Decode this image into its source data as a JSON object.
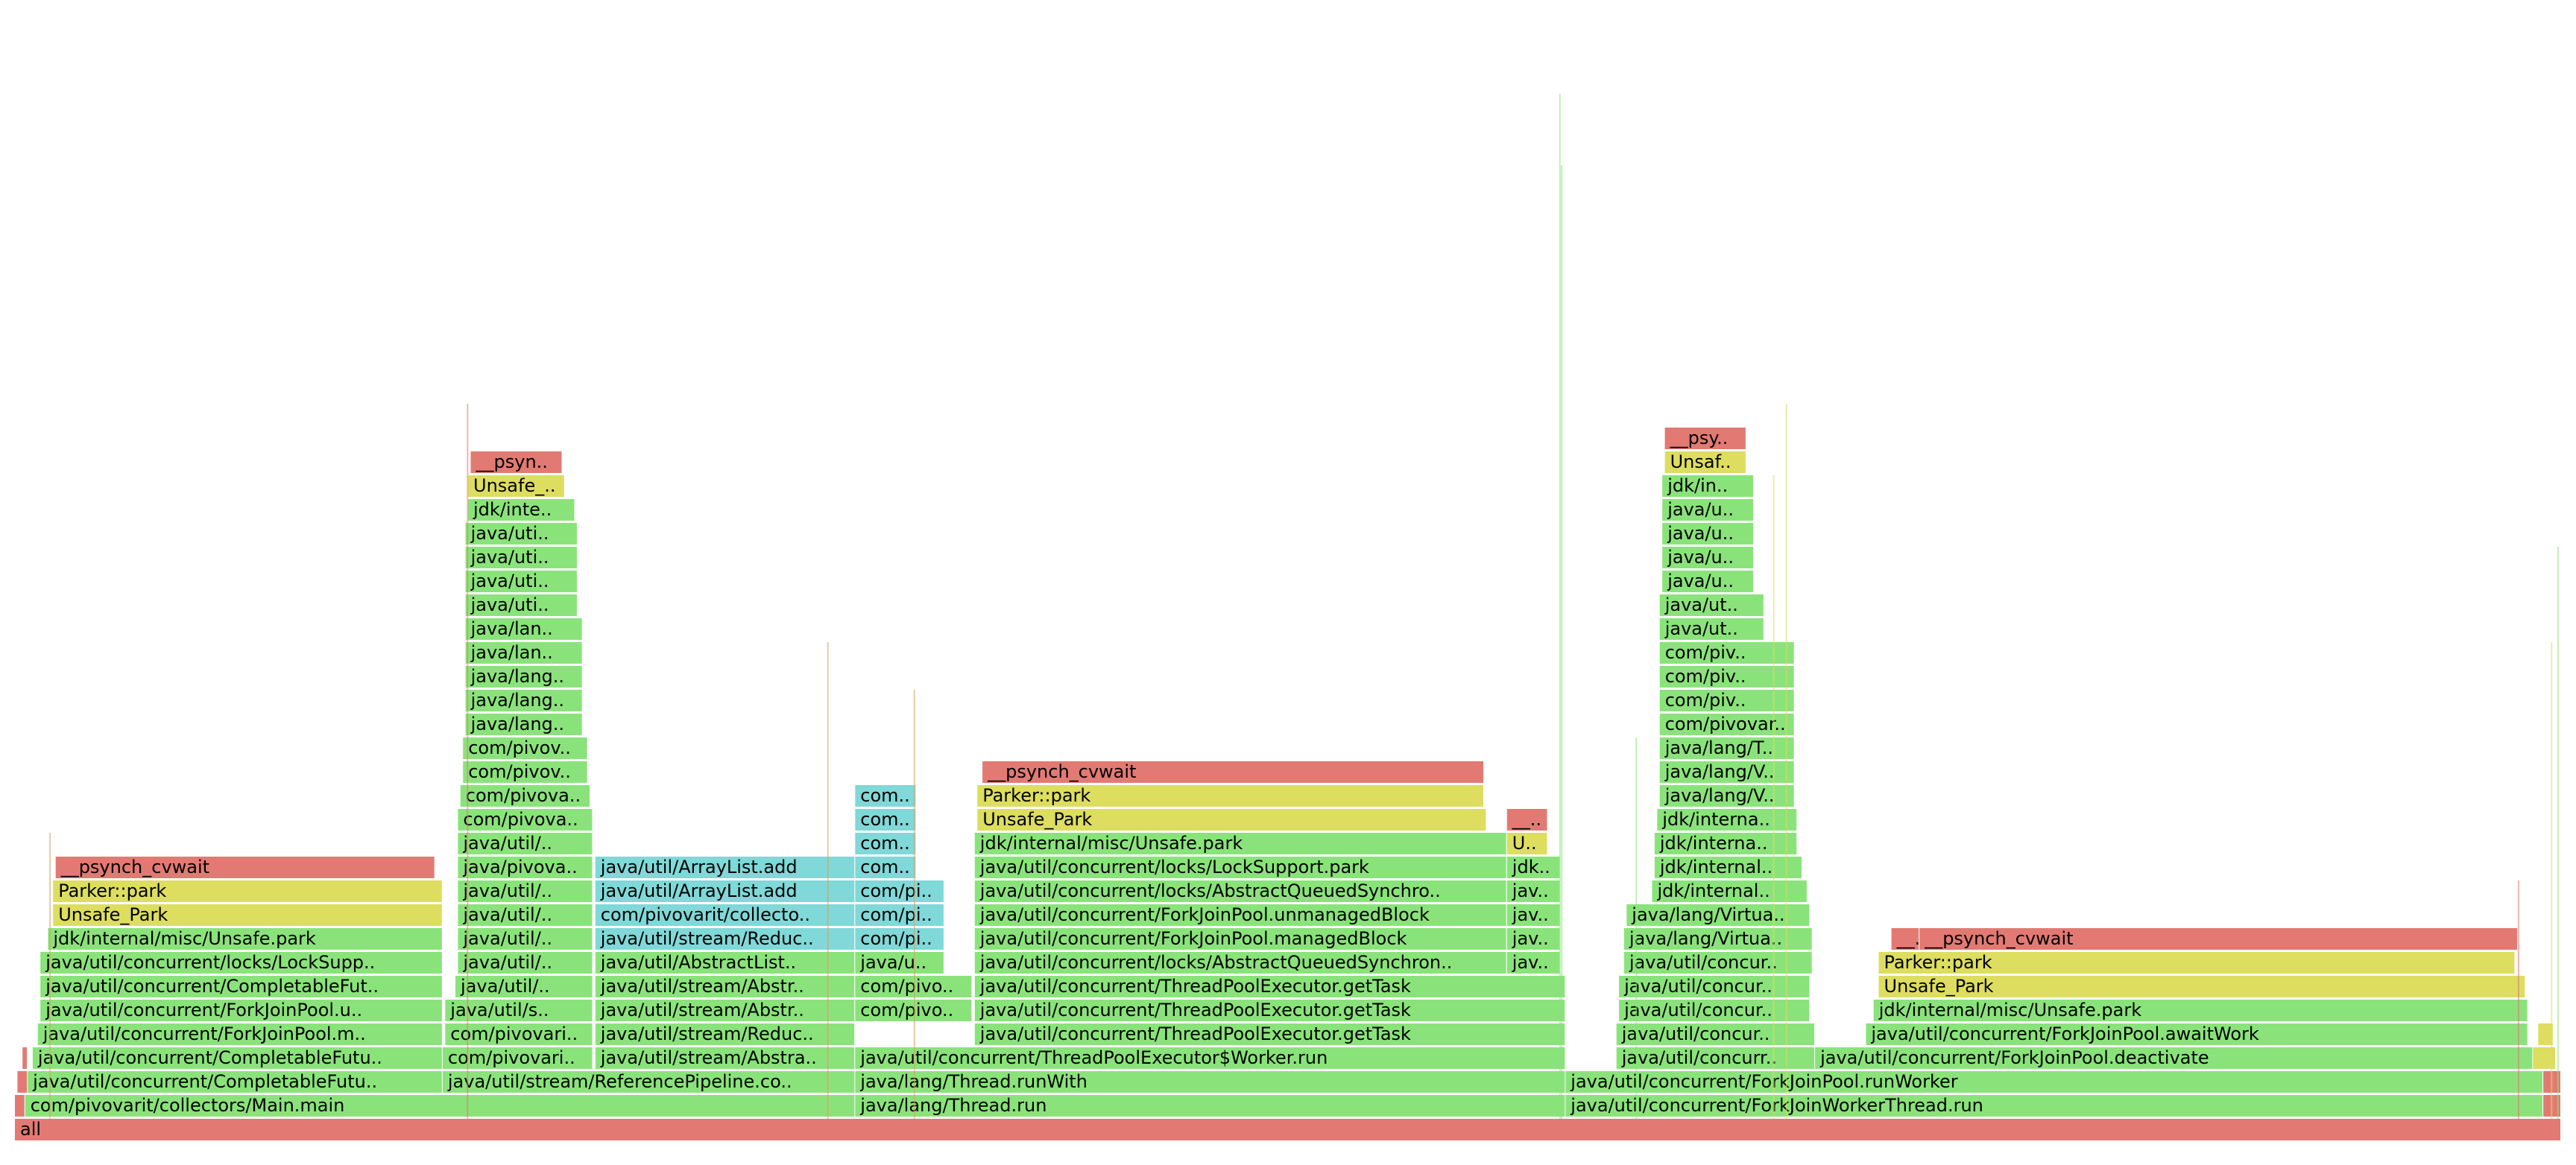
{
  "chart_data": {
    "type": "flamegraph",
    "title": "",
    "xlabel": "",
    "ylabel": "",
    "x_unit": "percent_of_samples",
    "x_range": [
      0,
      100
    ],
    "colors": {
      "java": "#8ae37a",
      "java_alt": "#7ed46e",
      "jdk": "#74d264",
      "native": "#e27a73",
      "cpp": "#dddd60",
      "cpp_dark": "#c6c655",
      "inlined": "#80d8d8",
      "inlined_dark": "#74c8cf",
      "tiny": "#d3a060"
    },
    "frames": [
      {
        "label": "all",
        "kind": "native",
        "depth": 0,
        "start": 0.0,
        "width": 100.0
      },
      {
        "label": "",
        "kind": "native",
        "depth": 1,
        "start": 0.0,
        "width": 0.4
      },
      {
        "label": "com/pivovarit/collectors/Main.main",
        "kind": "java",
        "depth": 1,
        "start": 0.4,
        "width": 32.6
      },
      {
        "label": "java/lang/Thread.run",
        "kind": "java",
        "depth": 1,
        "start": 33.0,
        "width": 27.9
      },
      {
        "label": "java/util/concurrent/ForkJoinWorkerThread.run",
        "kind": "java",
        "depth": 1,
        "start": 60.9,
        "width": 38.4
      },
      {
        "label": "",
        "kind": "native",
        "depth": 1,
        "start": 99.3,
        "width": 0.7
      },
      {
        "label": "",
        "kind": "native",
        "depth": 2,
        "start": 0.1,
        "width": 0.4
      },
      {
        "label": "java/util/concurrent/CompletableFutu..",
        "kind": "java",
        "depth": 2,
        "start": 0.5,
        "width": 16.3
      },
      {
        "label": "java/util/stream/ReferencePipeline.co..",
        "kind": "java",
        "depth": 2,
        "start": 16.8,
        "width": 16.2
      },
      {
        "label": "java/lang/Thread.runWith",
        "kind": "java",
        "depth": 2,
        "start": 33.0,
        "width": 27.9
      },
      {
        "label": "java/util/concurrent/ForkJoinPool.runWorker",
        "kind": "java",
        "depth": 2,
        "start": 60.9,
        "width": 38.4
      },
      {
        "label": "",
        "kind": "native",
        "depth": 2,
        "start": 99.3,
        "width": 0.7
      },
      {
        "label": "",
        "kind": "native",
        "depth": 3,
        "start": 0.3,
        "width": 0.2
      },
      {
        "label": "java/util/concurrent/CompletableFutu..",
        "kind": "java",
        "depth": 3,
        "start": 0.7,
        "width": 16.1
      },
      {
        "label": "com/pivovari..",
        "kind": "java",
        "depth": 3,
        "start": 16.8,
        "width": 5.9
      },
      {
        "label": "java/util/stream/Abstra..",
        "kind": "java",
        "depth": 3,
        "start": 22.8,
        "width": 10.2
      },
      {
        "label": "java/util/concurrent/ThreadPoolExecutor$Worker.run",
        "kind": "java",
        "depth": 3,
        "start": 33.0,
        "width": 27.9
      },
      {
        "label": "java/util/concurr..",
        "kind": "java",
        "depth": 3,
        "start": 62.9,
        "width": 7.8
      },
      {
        "label": "java/util/concurrent/ForkJoinPool.deactivate",
        "kind": "java",
        "depth": 3,
        "start": 70.7,
        "width": 28.2
      },
      {
        "label": "",
        "kind": "cpp",
        "depth": 3,
        "start": 98.9,
        "width": 0.9
      },
      {
        "label": "java/util/concurrent/ForkJoinPool.m..",
        "kind": "java",
        "depth": 4,
        "start": 0.9,
        "width": 15.9
      },
      {
        "label": "com/pivovari..",
        "kind": "java",
        "depth": 4,
        "start": 16.9,
        "width": 5.8
      },
      {
        "label": "java/util/stream/Reduc..",
        "kind": "java",
        "depth": 4,
        "start": 22.8,
        "width": 10.2
      },
      {
        "label": "java/util/concurrent/ThreadPoolExecutor.getTask",
        "kind": "java",
        "depth": 4,
        "start": 37.7,
        "width": 23.2
      },
      {
        "label": "java/util/concur..",
        "kind": "java",
        "depth": 4,
        "start": 62.9,
        "width": 7.8
      },
      {
        "label": "java/util/concurrent/ForkJoinPool.awaitWork",
        "kind": "java",
        "depth": 4,
        "start": 72.7,
        "width": 26.0
      },
      {
        "label": "",
        "kind": "cpp",
        "depth": 4,
        "start": 99.1,
        "width": 0.6
      },
      {
        "label": "java/util/concurrent/ForkJoinPool.u..",
        "kind": "java",
        "depth": 5,
        "start": 1.0,
        "width": 15.8
      },
      {
        "label": "java/util/s..",
        "kind": "java",
        "depth": 5,
        "start": 16.9,
        "width": 5.8
      },
      {
        "label": "java/util/stream/Abstr..",
        "kind": "java",
        "depth": 5,
        "start": 22.8,
        "width": 10.2
      },
      {
        "label": "com/pivo..",
        "kind": "java",
        "depth": 5,
        "start": 33.0,
        "width": 4.6
      },
      {
        "label": "java/util/concurrent/ThreadPoolExecutor.getTask",
        "kind": "java",
        "depth": 5,
        "start": 37.7,
        "width": 23.2
      },
      {
        "label": "java/util/concur..",
        "kind": "java",
        "depth": 5,
        "start": 63.0,
        "width": 7.5
      },
      {
        "label": "jdk/internal/misc/Unsafe.park",
        "kind": "java",
        "depth": 5,
        "start": 73.0,
        "width": 25.7
      },
      {
        "label": "java/util/concurrent/CompletableFut..",
        "kind": "java",
        "depth": 6,
        "start": 1.0,
        "width": 15.8
      },
      {
        "label": "java/util/..",
        "kind": "java",
        "depth": 6,
        "start": 17.3,
        "width": 5.4
      },
      {
        "label": "java/util/stream/Abstr..",
        "kind": "java",
        "depth": 6,
        "start": 22.8,
        "width": 10.2
      },
      {
        "label": "com/pivo..",
        "kind": "java",
        "depth": 6,
        "start": 33.0,
        "width": 4.6
      },
      {
        "label": "java/util/concurrent/ThreadPoolExecutor.getTask",
        "kind": "java",
        "depth": 6,
        "start": 37.7,
        "width": 23.2
      },
      {
        "label": "java/util/concur..",
        "kind": "java",
        "depth": 6,
        "start": 63.0,
        "width": 7.5
      },
      {
        "label": "Unsafe_Park",
        "kind": "cpp",
        "depth": 6,
        "start": 73.2,
        "width": 25.4
      },
      {
        "label": "java/util/concurrent/locks/LockSupp..",
        "kind": "java",
        "depth": 7,
        "start": 1.0,
        "width": 15.8
      },
      {
        "label": "java/util/..",
        "kind": "java",
        "depth": 7,
        "start": 17.4,
        "width": 5.3
      },
      {
        "label": "java/util/AbstractList..",
        "kind": "java",
        "depth": 7,
        "start": 22.8,
        "width": 10.2
      },
      {
        "label": "java/u..",
        "kind": "java",
        "depth": 7,
        "start": 33.0,
        "width": 3.5
      },
      {
        "label": "java/util/concurrent/locks/AbstractQueuedSynchron..",
        "kind": "java",
        "depth": 7,
        "start": 37.7,
        "width": 20.9
      },
      {
        "label": "jav..",
        "kind": "java",
        "depth": 7,
        "start": 58.6,
        "width": 2.1
      },
      {
        "label": "java/util/concur..",
        "kind": "java",
        "depth": 7,
        "start": 63.2,
        "width": 7.4
      },
      {
        "label": "Parker::park",
        "kind": "cpp",
        "depth": 7,
        "start": 73.2,
        "width": 25.0
      },
      {
        "label": "jdk/internal/misc/Unsafe.park",
        "kind": "java",
        "depth": 8,
        "start": 1.3,
        "width": 15.5
      },
      {
        "label": "java/util/..",
        "kind": "java",
        "depth": 8,
        "start": 17.4,
        "width": 5.3
      },
      {
        "label": "java/util/stream/Reduc..",
        "kind": "inlined",
        "depth": 8,
        "start": 22.8,
        "width": 10.2
      },
      {
        "label": "com/pi..",
        "kind": "inlined",
        "depth": 8,
        "start": 33.0,
        "width": 3.5
      },
      {
        "label": "java/util/concurrent/ForkJoinPool.managedBlock",
        "kind": "java",
        "depth": 8,
        "start": 37.7,
        "width": 20.9
      },
      {
        "label": "jav..",
        "kind": "java",
        "depth": 8,
        "start": 58.6,
        "width": 2.1
      },
      {
        "label": "java/lang/Virtua..",
        "kind": "java",
        "depth": 8,
        "start": 63.2,
        "width": 7.4
      },
      {
        "label": "__..",
        "kind": "native",
        "depth": 8,
        "start": 73.7,
        "width": 1.1
      },
      {
        "label": "__psynch_cvwait",
        "kind": "native",
        "depth": 8,
        "start": 74.8,
        "width": 23.5
      },
      {
        "label": "Unsafe_Park",
        "kind": "cpp",
        "depth": 9,
        "start": 1.5,
        "width": 15.3
      },
      {
        "label": "java/util/..",
        "kind": "java",
        "depth": 9,
        "start": 17.4,
        "width": 5.3
      },
      {
        "label": "com/pivovarit/collecto..",
        "kind": "inlined",
        "depth": 9,
        "start": 22.8,
        "width": 10.2
      },
      {
        "label": "com/pi..",
        "kind": "inlined",
        "depth": 9,
        "start": 33.0,
        "width": 3.5
      },
      {
        "label": "java/util/concurrent/ForkJoinPool.unmanagedBlock",
        "kind": "java",
        "depth": 9,
        "start": 37.7,
        "width": 20.9
      },
      {
        "label": "jav..",
        "kind": "java",
        "depth": 9,
        "start": 58.6,
        "width": 2.1
      },
      {
        "label": "java/lang/Virtua..",
        "kind": "java",
        "depth": 9,
        "start": 63.3,
        "width": 7.2
      },
      {
        "label": "Parker::park",
        "kind": "cpp",
        "depth": 10,
        "start": 1.5,
        "width": 15.3
      },
      {
        "label": "java/util/..",
        "kind": "java",
        "depth": 10,
        "start": 17.4,
        "width": 5.3
      },
      {
        "label": "java/util/ArrayList.add",
        "kind": "inlined",
        "depth": 10,
        "start": 22.8,
        "width": 10.2
      },
      {
        "label": "com/pi..",
        "kind": "inlined",
        "depth": 10,
        "start": 33.0,
        "width": 3.5
      },
      {
        "label": "java/util/concurrent/locks/AbstractQueuedSynchro..",
        "kind": "java",
        "depth": 10,
        "start": 37.7,
        "width": 20.9
      },
      {
        "label": "jav..",
        "kind": "java",
        "depth": 10,
        "start": 58.6,
        "width": 2.1
      },
      {
        "label": "jdk/internal..",
        "kind": "java",
        "depth": 10,
        "start": 64.3,
        "width": 6.1
      },
      {
        "label": "__psynch_cvwait",
        "kind": "native",
        "depth": 11,
        "start": 1.6,
        "width": 14.9
      },
      {
        "label": "java/pivova..",
        "kind": "java",
        "depth": 11,
        "start": 17.4,
        "width": 5.3
      },
      {
        "label": "java/util/ArrayList.add",
        "kind": "inlined",
        "depth": 11,
        "start": 22.8,
        "width": 10.2
      },
      {
        "label": "com..",
        "kind": "inlined",
        "depth": 11,
        "start": 33.0,
        "width": 2.4
      },
      {
        "label": "java/util/concurrent/locks/LockSupport.park",
        "kind": "java",
        "depth": 11,
        "start": 37.7,
        "width": 20.9
      },
      {
        "label": "jdk..",
        "kind": "java",
        "depth": 11,
        "start": 58.6,
        "width": 2.1
      },
      {
        "label": "jdk/internal..",
        "kind": "java",
        "depth": 11,
        "start": 64.4,
        "width": 5.8
      },
      {
        "label": "java/util/..",
        "kind": "java",
        "depth": 12,
        "start": 17.4,
        "width": 5.3
      },
      {
        "label": "com..",
        "kind": "inlined",
        "depth": 12,
        "start": 33.0,
        "width": 2.4
      },
      {
        "label": "jdk/internal/misc/Unsafe.park",
        "kind": "java",
        "depth": 12,
        "start": 37.7,
        "width": 20.9
      },
      {
        "label": "U..",
        "kind": "cpp",
        "depth": 12,
        "start": 58.6,
        "width": 1.6
      },
      {
        "label": "jdk/interna..",
        "kind": "java",
        "depth": 12,
        "start": 64.4,
        "width": 5.6
      },
      {
        "label": "com/pivova..",
        "kind": "java",
        "depth": 13,
        "start": 17.4,
        "width": 5.3
      },
      {
        "label": "com..",
        "kind": "inlined",
        "depth": 13,
        "start": 33.0,
        "width": 2.4
      },
      {
        "label": "Unsafe_Park",
        "kind": "cpp",
        "depth": 13,
        "start": 37.8,
        "width": 20.0
      },
      {
        "label": "__..",
        "kind": "native",
        "depth": 13,
        "start": 58.6,
        "width": 1.6
      },
      {
        "label": "jdk/interna..",
        "kind": "java",
        "depth": 13,
        "start": 64.5,
        "width": 5.5
      },
      {
        "label": "com/pivova..",
        "kind": "java",
        "depth": 14,
        "start": 17.5,
        "width": 5.1
      },
      {
        "label": "com..",
        "kind": "inlined",
        "depth": 14,
        "start": 33.0,
        "width": 2.4
      },
      {
        "label": "Parker::park",
        "kind": "cpp",
        "depth": 14,
        "start": 37.8,
        "width": 19.9
      },
      {
        "label": "java/lang/V..",
        "kind": "java",
        "depth": 14,
        "start": 64.6,
        "width": 5.3
      },
      {
        "label": "com/pivov..",
        "kind": "java",
        "depth": 15,
        "start": 17.6,
        "width": 4.9
      },
      {
        "label": "__psynch_cvwait",
        "kind": "native",
        "depth": 15,
        "start": 38.0,
        "width": 19.7
      },
      {
        "label": "java/lang/V..",
        "kind": "java",
        "depth": 15,
        "start": 64.6,
        "width": 5.3
      },
      {
        "label": "com/pivov..",
        "kind": "java",
        "depth": 16,
        "start": 17.6,
        "width": 4.9
      },
      {
        "label": "java/lang/T..",
        "kind": "java",
        "depth": 16,
        "start": 64.6,
        "width": 5.3
      },
      {
        "label": "java/lang..",
        "kind": "java",
        "depth": 17,
        "start": 17.7,
        "width": 4.6
      },
      {
        "label": "com/pivovar..",
        "kind": "java",
        "depth": 17,
        "start": 64.6,
        "width": 5.3
      },
      {
        "label": "java/lang..",
        "kind": "java",
        "depth": 18,
        "start": 17.7,
        "width": 4.6
      },
      {
        "label": "com/piv..",
        "kind": "java",
        "depth": 18,
        "start": 64.6,
        "width": 5.3
      },
      {
        "label": "java/lang..",
        "kind": "java",
        "depth": 19,
        "start": 17.7,
        "width": 4.6
      },
      {
        "label": "com/piv..",
        "kind": "java",
        "depth": 19,
        "start": 64.6,
        "width": 5.3
      },
      {
        "label": "java/lan..",
        "kind": "java",
        "depth": 20,
        "start": 17.7,
        "width": 4.6
      },
      {
        "label": "com/piv..",
        "kind": "java",
        "depth": 20,
        "start": 64.6,
        "width": 5.3
      },
      {
        "label": "java/lan..",
        "kind": "java",
        "depth": 21,
        "start": 17.7,
        "width": 4.6
      },
      {
        "label": "java/ut..",
        "kind": "java",
        "depth": 21,
        "start": 64.6,
        "width": 4.1
      },
      {
        "label": "java/uti..",
        "kind": "java",
        "depth": 22,
        "start": 17.7,
        "width": 4.4
      },
      {
        "label": "java/ut..",
        "kind": "java",
        "depth": 22,
        "start": 64.6,
        "width": 4.1
      },
      {
        "label": "java/uti..",
        "kind": "java",
        "depth": 23,
        "start": 17.7,
        "width": 4.4
      },
      {
        "label": "java/u..",
        "kind": "java",
        "depth": 23,
        "start": 64.7,
        "width": 3.6
      },
      {
        "label": "java/uti..",
        "kind": "java",
        "depth": 24,
        "start": 17.7,
        "width": 4.4
      },
      {
        "label": "java/u..",
        "kind": "java",
        "depth": 24,
        "start": 64.7,
        "width": 3.6
      },
      {
        "label": "java/uti..",
        "kind": "java",
        "depth": 25,
        "start": 17.7,
        "width": 4.4
      },
      {
        "label": "java/u..",
        "kind": "java",
        "depth": 25,
        "start": 64.7,
        "width": 3.6
      },
      {
        "label": "jdk/inte..",
        "kind": "java",
        "depth": 26,
        "start": 17.8,
        "width": 4.2
      },
      {
        "label": "java/u..",
        "kind": "java",
        "depth": 26,
        "start": 64.7,
        "width": 3.6
      },
      {
        "label": "Unsafe_..",
        "kind": "cpp",
        "depth": 27,
        "start": 17.8,
        "width": 3.8
      },
      {
        "label": "jdk/in..",
        "kind": "java",
        "depth": 27,
        "start": 64.7,
        "width": 3.6
      },
      {
        "label": "__psyn..",
        "kind": "native",
        "depth": 28,
        "start": 17.9,
        "width": 3.6
      },
      {
        "label": "Unsaf..",
        "kind": "cpp",
        "depth": 28,
        "start": 64.8,
        "width": 3.2
      },
      {
        "label": "__psy..",
        "kind": "native",
        "depth": 29,
        "start": 64.8,
        "width": 3.2
      }
    ]
  }
}
